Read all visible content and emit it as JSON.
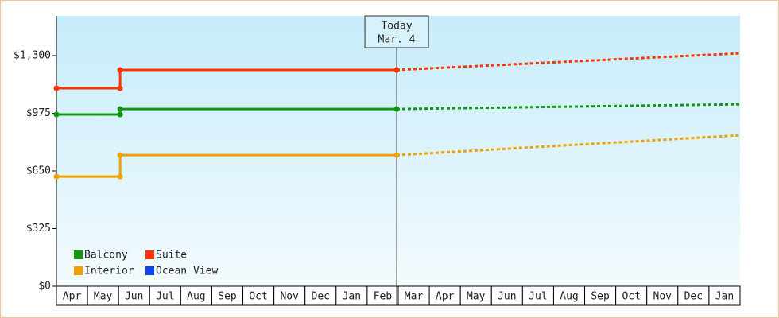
{
  "chart_data": {
    "type": "line",
    "categories": [
      "Apr",
      "May",
      "Jun",
      "Jul",
      "Aug",
      "Sep",
      "Oct",
      "Nov",
      "Dec",
      "Jan",
      "Feb",
      "Mar",
      "Apr",
      "May",
      "Jun",
      "Jul",
      "Aug",
      "Sep",
      "Oct",
      "Nov",
      "Dec",
      "Jan"
    ],
    "xlim": [
      0,
      22
    ],
    "ylim": [
      0,
      1524
    ],
    "yticks": [
      {
        "value": 0,
        "label": "$0"
      },
      {
        "value": 325,
        "label": "$325"
      },
      {
        "value": 650,
        "label": "$650"
      },
      {
        "value": 975,
        "label": "$975"
      },
      {
        "value": 1300,
        "label": "$1,300"
      }
    ],
    "annotation": {
      "lines": [
        "Today",
        "Mar. 4"
      ],
      "x": 10.95
    },
    "series": [
      {
        "name": "Balcony",
        "color": "#119911",
        "x": [
          0,
          2.05,
          2.05,
          10.95
        ],
        "values": [
          968,
          968,
          999,
          999
        ],
        "projection": {
          "x": [
            10.95,
            22
          ],
          "values": [
            999,
            1026
          ]
        }
      },
      {
        "name": "Suite",
        "color": "#ff3300",
        "x": [
          0,
          2.05,
          2.05,
          10.95
        ],
        "values": [
          1116,
          1116,
          1219,
          1219
        ],
        "projection": {
          "x": [
            10.95,
            22
          ],
          "values": [
            1219,
            1313
          ]
        }
      },
      {
        "name": "Interior",
        "color": "#f0a000",
        "x": [
          0,
          2.05,
          2.05,
          10.95
        ],
        "values": [
          618,
          618,
          739,
          739
        ],
        "projection": {
          "x": [
            10.95,
            22
          ],
          "values": [
            739,
            851
          ]
        }
      },
      {
        "name": "Ocean View",
        "color": "#1144ee",
        "x": [],
        "values": []
      }
    ]
  }
}
